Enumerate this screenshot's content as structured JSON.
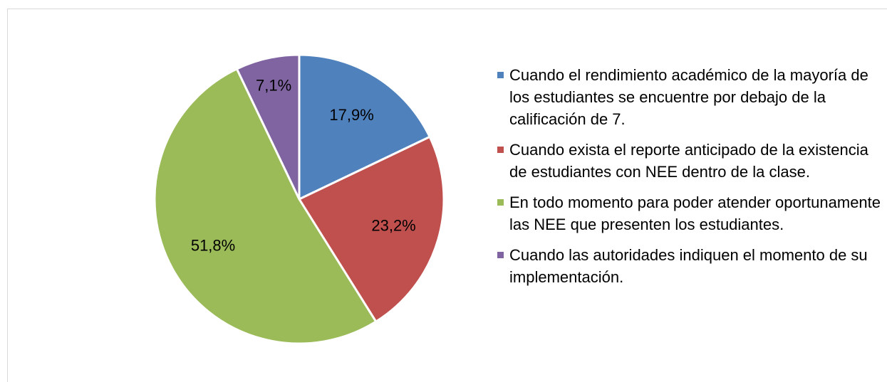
{
  "chart_data": {
    "type": "pie",
    "categories": [
      "Cuando el rendimiento académico de la mayoría de los estudiantes se encuentre por debajo de la calificación de 7.",
      "Cuando exista el reporte anticipado de la existencia de estudiantes con NEE dentro de la clase.",
      "En todo momento para poder atender oportunamente las NEE que presenten los estudiantes.",
      "Cuando las autoridades indiquen el momento de su implementación."
    ],
    "values": [
      17.9,
      23.2,
      51.8,
      7.1
    ],
    "value_labels": [
      "17,9%",
      "23,2%",
      "51,8%",
      "7,1%"
    ],
    "colors": [
      "#4f81bd",
      "#c0504d",
      "#9bbb59",
      "#8064a2"
    ],
    "legend": "right"
  }
}
